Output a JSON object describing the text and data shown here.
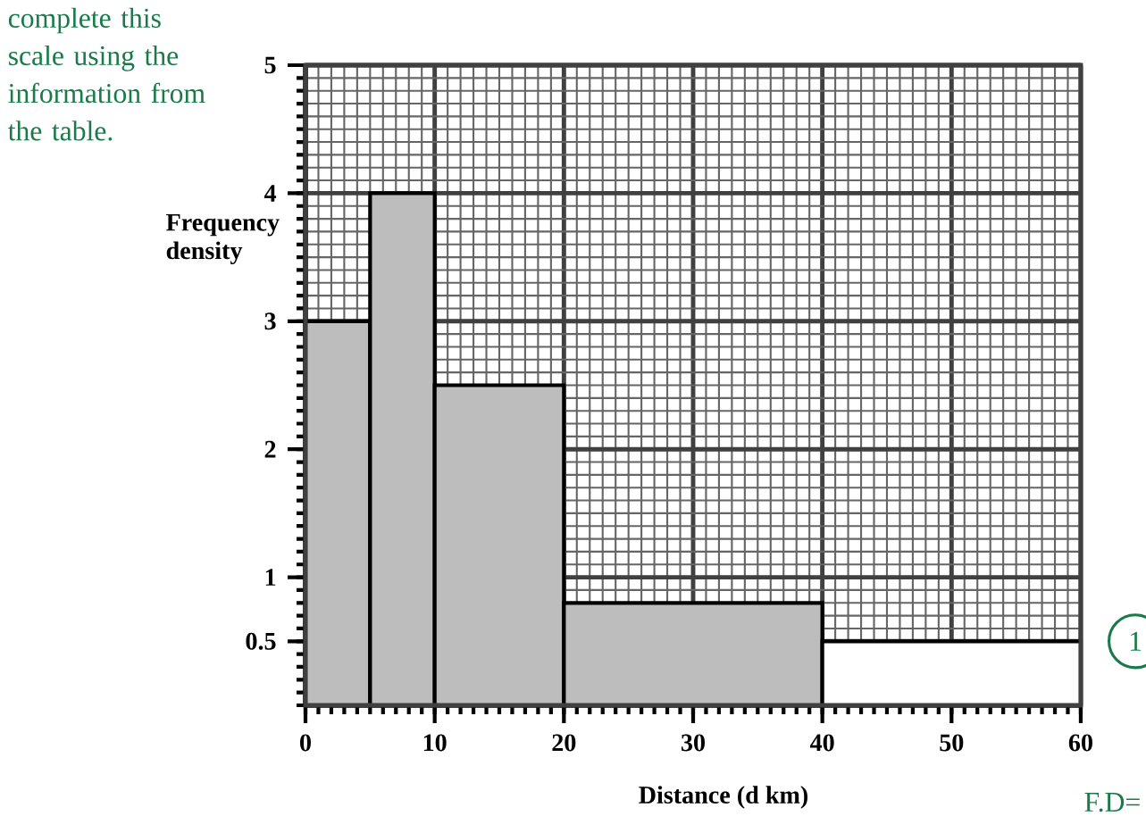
{
  "chart_data": {
    "type": "histogram",
    "xlabel": "Distance (d km)",
    "ylabel": "Frequency density",
    "bins": [
      0,
      5,
      10,
      20,
      40,
      60
    ],
    "values": [
      3,
      4,
      2.5,
      0.8,
      0.5
    ],
    "colors": [
      "#bdbdbd",
      "#bdbdbd",
      "#bdbdbd",
      "#bdbdbd",
      "#ffffff"
    ],
    "xlim": [
      0,
      60
    ],
    "ylim": [
      0,
      5
    ],
    "xticks": [
      0,
      10,
      20,
      30,
      40,
      50,
      60
    ],
    "yticks": [
      {
        "value": 0.5,
        "label": "0.5"
      },
      1,
      2,
      3,
      4,
      5
    ],
    "grid": true,
    "annotations": [
      "complete this scale using the information from the table.",
      {
        "text": "1",
        "x": 60,
        "y": 0.5
      },
      "F.D="
    ]
  }
}
